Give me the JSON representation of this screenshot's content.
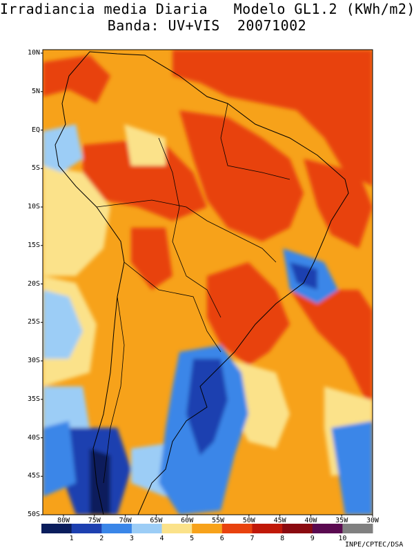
{
  "header": {
    "title_line1": "Irradiancia media Diaria   Modelo GL1.2 (KWh/m2)",
    "title_line2": "Banda: UV+VIS  20071002"
  },
  "map": {
    "region": "South America",
    "lon_range": [
      -84,
      -30
    ],
    "lat_range": [
      -50,
      12
    ],
    "y_ticks": [
      "10N",
      "5N",
      "EQ",
      "5S",
      "10S",
      "15S",
      "20S",
      "25S",
      "30S",
      "35S",
      "40S",
      "45S",
      "50S"
    ],
    "x_ticks": [
      "80W",
      "75W",
      "70W",
      "65W",
      "60W",
      "55W",
      "50W",
      "45W",
      "40W",
      "35W",
      "30W"
    ]
  },
  "colorbar": {
    "labels": [
      "1",
      "2",
      "3",
      "4",
      "5",
      "6",
      "7",
      "8",
      "9",
      "10"
    ],
    "colors": [
      "#0a1d5c",
      "#1d40b0",
      "#3a86e8",
      "#9ccdf6",
      "#fbe28a",
      "#f7a21a",
      "#e8420e",
      "#c01808",
      "#8a0a10",
      "#5a0a50",
      "#808080"
    ]
  },
  "credit": "INPE/CPTEC/DSA"
}
